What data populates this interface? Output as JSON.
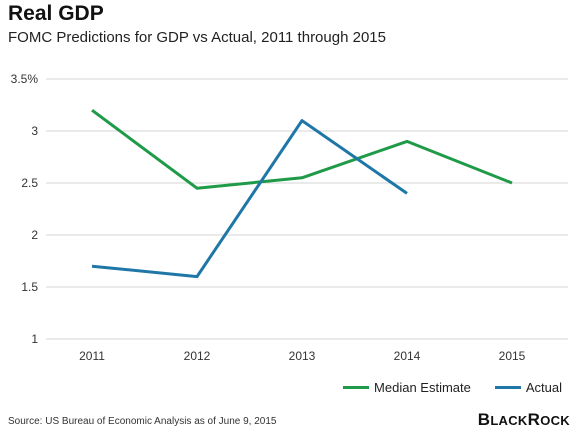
{
  "header": {
    "title": "Real GDP",
    "subtitle": "FOMC Predictions for GDP vs Actual, 2011 through 2015"
  },
  "footer": {
    "source": "Source: US Bureau of Economic Analysis as of June 9, 2015",
    "brand_first": "B",
    "brand_mid": "LACK",
    "brand_second": "R",
    "brand_end": "OCK"
  },
  "chart_data": {
    "type": "line",
    "title": "Real GDP",
    "subtitle": "FOMC Predictions for GDP vs Actual, 2011 through 2015",
    "xlabel": "",
    "ylabel": "",
    "categories": [
      "2011",
      "2012",
      "2013",
      "2014",
      "2015"
    ],
    "ylim": [
      1,
      3.5
    ],
    "yticks": [
      1,
      1.5,
      2,
      2.5,
      3,
      3.5
    ],
    "ytick_labels": [
      "1",
      "1.5",
      "2",
      "2.5",
      "3",
      "3.5%"
    ],
    "grid": "horizontal",
    "legend_position": "bottom-right",
    "series": [
      {
        "name": "Median Estimate",
        "color": "#1f9a48",
        "values": [
          3.2,
          2.45,
          2.55,
          2.9,
          2.5
        ]
      },
      {
        "name": "Actual",
        "color": "#1f77a8",
        "values": [
          1.7,
          1.6,
          3.1,
          2.4,
          null
        ]
      }
    ]
  }
}
